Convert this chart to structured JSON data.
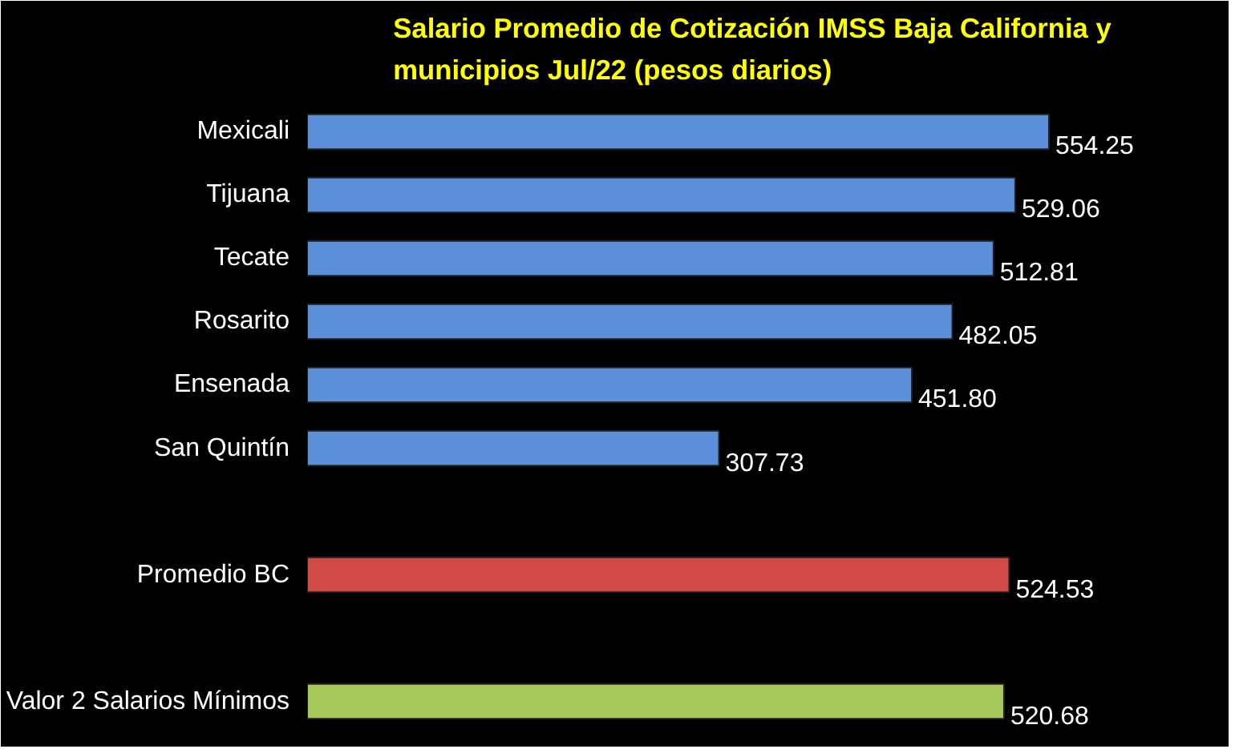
{
  "chart_data": {
    "type": "bar",
    "orientation": "horizontal",
    "title": "Salario Promedio de Cotización IMSS Baja California y municipios Jul/22 (pesos diarios)",
    "categories": [
      "Mexicali",
      "Tijuana",
      "Tecate",
      "Rosarito",
      "Ensenada",
      "San Quintín",
      null,
      "Promedio BC",
      null,
      "Valor 2 Salarios Mínimos"
    ],
    "values": [
      554.25,
      529.06,
      512.81,
      482.05,
      451.8,
      307.73,
      null,
      524.53,
      null,
      520.68
    ],
    "colors": [
      "#5b8fd9",
      "#5b8fd9",
      "#5b8fd9",
      "#5b8fd9",
      "#5b8fd9",
      "#5b8fd9",
      null,
      "#d24a47",
      null,
      "#a6c85a"
    ],
    "value_labels": [
      "554.25",
      "529.06",
      "512.81",
      "482.05",
      "451.80",
      "307.73",
      null,
      "524.53",
      null,
      "520.68"
    ]
  }
}
